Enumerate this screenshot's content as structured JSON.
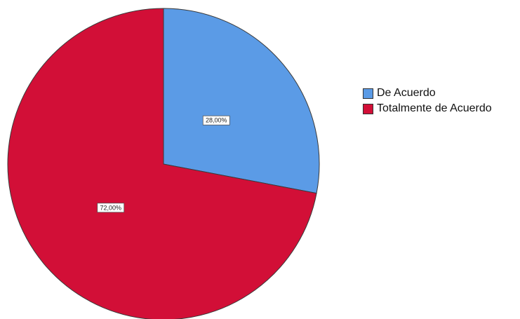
{
  "chart_data": {
    "type": "pie",
    "categories": [
      "De Acuerdo",
      "Totalmente de Acuerdo"
    ],
    "values": [
      28.0,
      72.0
    ],
    "data_labels": [
      "28,00%",
      "72,00%"
    ],
    "colors": [
      "#5b9be6",
      "#d20f37"
    ],
    "start_angle": "12 o'clock",
    "direction": "clockwise",
    "legend_position": "right"
  },
  "legend": {
    "items": [
      {
        "label": "De Acuerdo",
        "color": "#5b9be6"
      },
      {
        "label": "Totalmente de Acuerdo",
        "color": "#d20f37"
      }
    ]
  }
}
